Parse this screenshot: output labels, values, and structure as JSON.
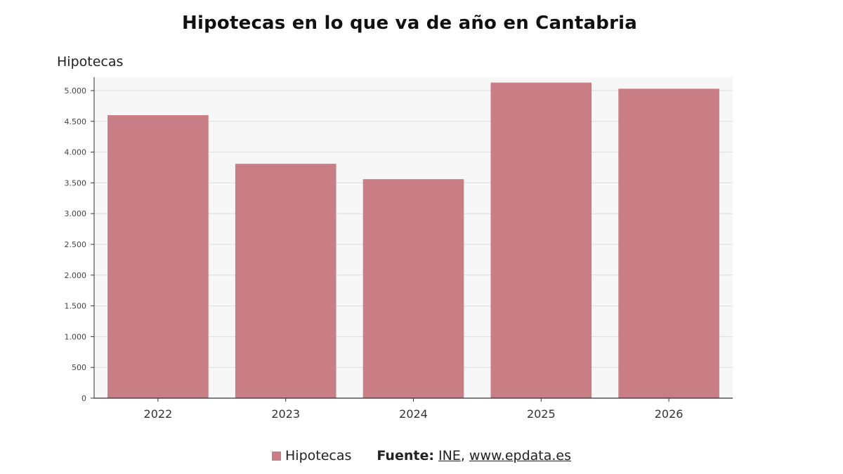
{
  "chart_data": {
    "type": "bar",
    "title": "Hipotecas en lo que va de año en Cantabria",
    "ylabel": "Hipotecas",
    "xlabel": "",
    "categories": [
      "2022",
      "2023",
      "2024",
      "2025",
      "2026"
    ],
    "series": [
      {
        "name": "Hipotecas",
        "values": [
          4600,
          3810,
          3560,
          5130,
          5030
        ]
      }
    ],
    "ylim": [
      0,
      5000
    ],
    "yticks": [
      0,
      500,
      1000,
      1500,
      2000,
      2500,
      3000,
      3500,
      4000,
      4500,
      5000
    ],
    "ytick_labels": [
      "0",
      "500",
      "1.000",
      "1.500",
      "2.000",
      "2.500",
      "3.000",
      "3.500",
      "4.000",
      "4.500",
      "5.000"
    ],
    "grid": true,
    "legend": "bottom",
    "colors": {
      "bar": "#c97e85",
      "plot_background": "#f7f7f7",
      "grid": "#dcdcdc",
      "axis": "#333333"
    }
  },
  "source": {
    "label": "Fuente:",
    "org": "INE",
    "separator": ",",
    "site": "www.epdata.es"
  }
}
